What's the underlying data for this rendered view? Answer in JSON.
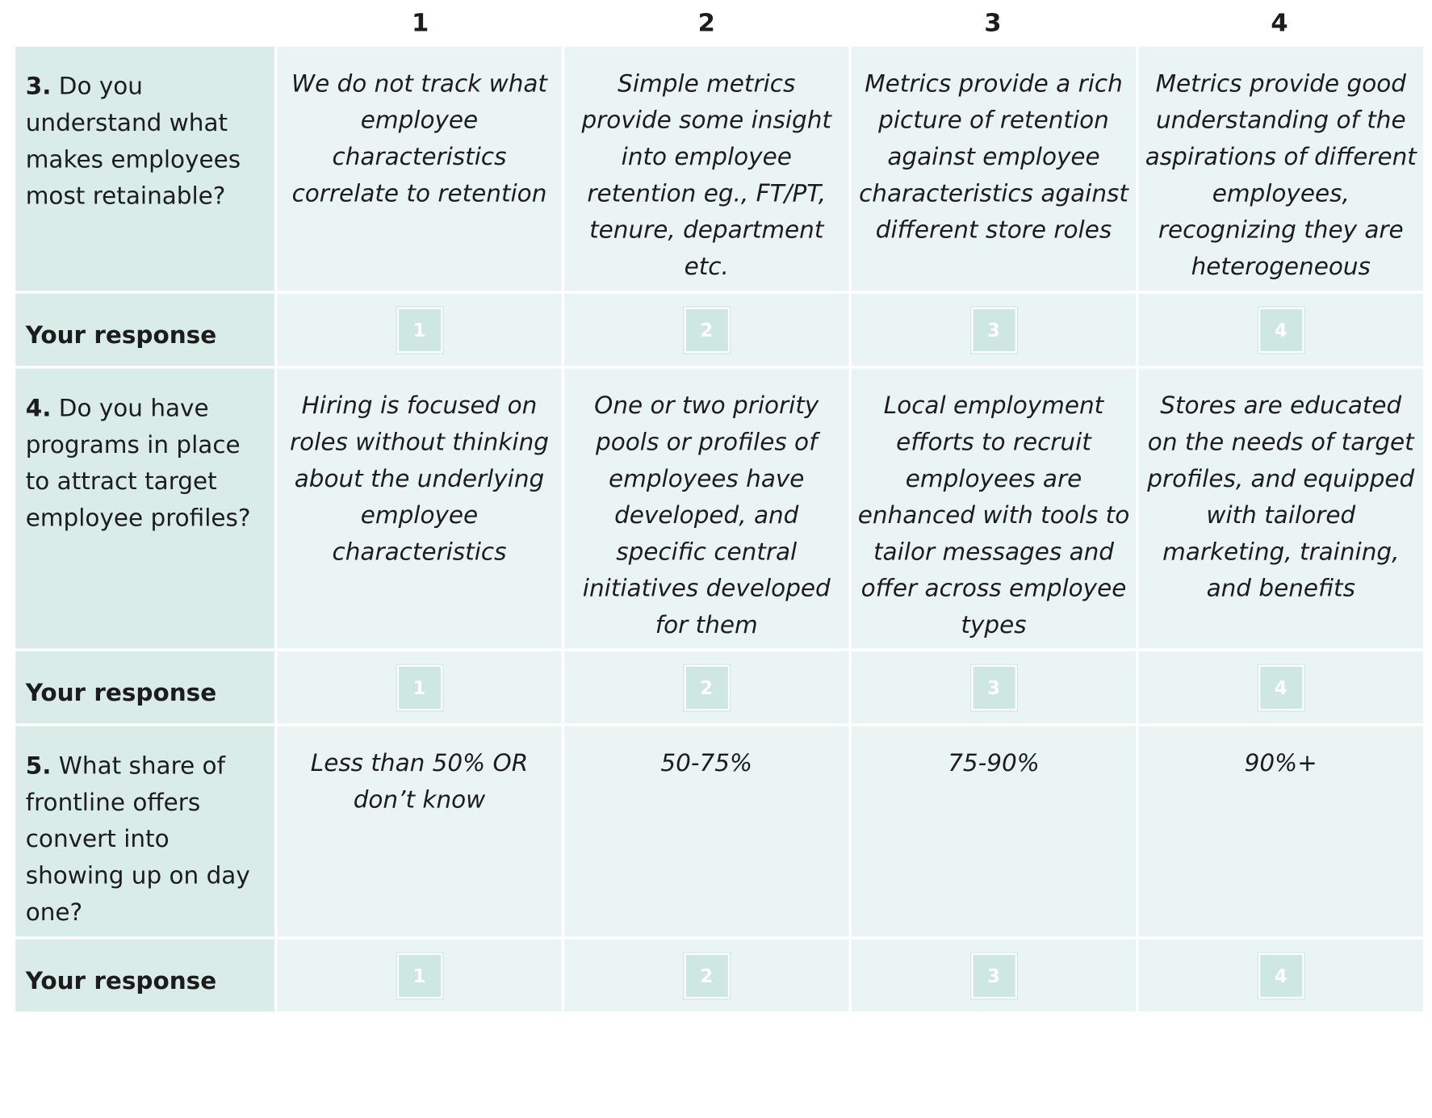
{
  "columns": [
    "1",
    "2",
    "3",
    "4"
  ],
  "questions": [
    {
      "number": "3.",
      "text": " Do you understand what makes employees most retainable?",
      "levels": [
        "We do not track what employee characteristics correlate to retention",
        "Simple metrics provide some insight into employee retention eg., FT/PT, tenure, department etc.",
        "Metrics provide a rich picture of retention against employee characteristics against different store roles",
        "Metrics provide good understanding of the aspirations of different employees, recognizing they are heterogeneous"
      ],
      "response_label": "Your response",
      "options": [
        "1",
        "2",
        "3",
        "4"
      ]
    },
    {
      "number": "4.",
      "text": " Do you have programs in place to attract target employee profiles?",
      "levels": [
        "Hiring is focused on roles without thinking about the underlying employee characteristics",
        "One or two priority pools or profiles of employees have developed, and specific central initiatives developed for them",
        "Local employment efforts to recruit employees are enhanced with tools to tailor messages and offer across employee types",
        "Stores are educated on the needs of target profiles, and equipped with tailored marketing, training, and benefits"
      ],
      "response_label": "Your response",
      "options": [
        "1",
        "2",
        "3",
        "4"
      ]
    },
    {
      "number": "5.",
      "text": " What share of frontline offers convert into showing up on day one?",
      "levels": [
        "Less than 50% OR don’t know",
        "50-75%",
        "75-90%",
        "90%+"
      ],
      "response_label": "Your response",
      "options": [
        "1",
        "2",
        "3",
        "4"
      ]
    }
  ]
}
